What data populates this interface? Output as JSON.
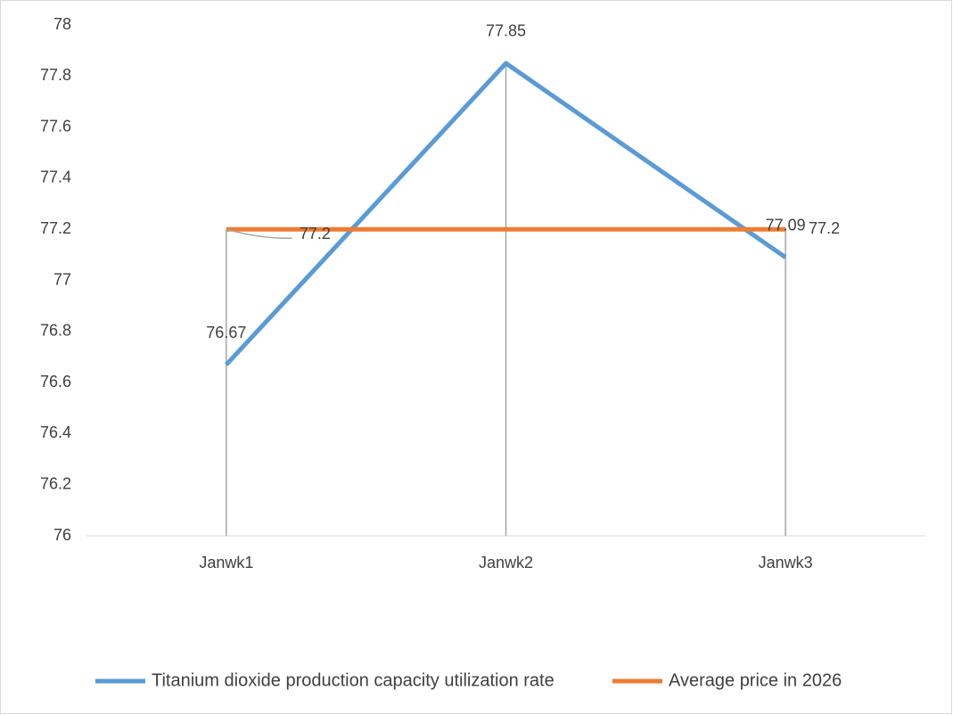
{
  "chart_data": {
    "type": "line",
    "categories": [
      "Janwk1",
      "Janwk2",
      "Janwk3"
    ],
    "series": [
      {
        "name": "Titanium dioxide production capacity utilization rate",
        "color": "#5b9bd5",
        "values": [
          76.67,
          77.85,
          77.09
        ]
      },
      {
        "name": "Average price in 2026",
        "color": "#ed7d31",
        "values": [
          77.2,
          77.2,
          77.2
        ]
      }
    ],
    "ylim": [
      76,
      78
    ],
    "yticks": [
      76,
      76.2,
      76.4,
      76.6,
      76.8,
      77,
      77.2,
      77.4,
      77.6,
      77.8,
      78
    ],
    "grid": false,
    "drop_lines": true,
    "legend": "bottom"
  }
}
